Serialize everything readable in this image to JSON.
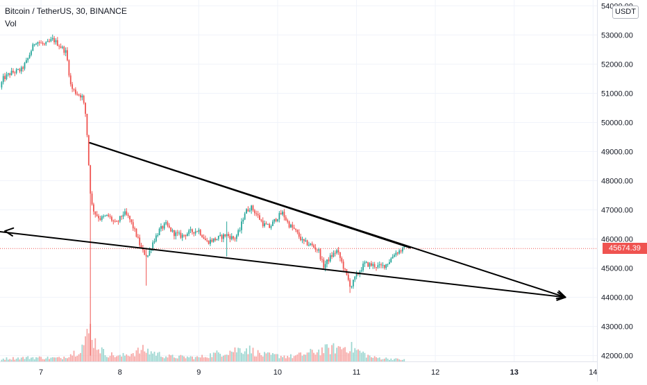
{
  "legend": {
    "symbol": "Bitcoin / TetherUS, 30, BINANCE",
    "volume_label": "Vol"
  },
  "currency": "USDT",
  "last_price_label": "45674.39",
  "colors": {
    "up": "#26a69a",
    "down": "#ef5350",
    "drawing": "#000000",
    "last_price_line": "#ef5350"
  },
  "chart_data": {
    "type": "candlestick",
    "symbol": "BTC/USDT",
    "interval": "30",
    "exchange": "BINANCE",
    "x_ticks": [
      {
        "label": "7",
        "day": 7,
        "bold": false
      },
      {
        "label": "8",
        "day": 8,
        "bold": false
      },
      {
        "label": "9",
        "day": 9,
        "bold": false
      },
      {
        "label": "10",
        "day": 10,
        "bold": false
      },
      {
        "label": "11",
        "day": 11,
        "bold": false
      },
      {
        "label": "12",
        "day": 12,
        "bold": false
      },
      {
        "label": "13",
        "day": 13,
        "bold": true
      },
      {
        "label": "14",
        "day": 14,
        "bold": false
      }
    ],
    "y_ticks": [
      {
        "value": 42000,
        "label": "42000.00"
      },
      {
        "value": 43000,
        "label": "43000.00"
      },
      {
        "value": 44000,
        "label": "44000.00"
      },
      {
        "value": 45000,
        "label": "45000.00"
      },
      {
        "value": 46000,
        "label": "46000.00"
      },
      {
        "value": 47000,
        "label": "47000.00"
      },
      {
        "value": 48000,
        "label": "48000.00"
      },
      {
        "value": 49000,
        "label": "49000.00"
      },
      {
        "value": 50000,
        "label": "50000.00"
      },
      {
        "value": 51000,
        "label": "51000.00"
      },
      {
        "value": 52000,
        "label": "52000.00"
      },
      {
        "value": 53000,
        "label": "53000.00"
      },
      {
        "value": 54000,
        "label": "54000.00"
      }
    ],
    "ylim": [
      41800,
      54200
    ],
    "xlim": [
      6.48,
      14.05
    ],
    "last_price": 45674.39,
    "price_path": [
      [
        6.48,
        51200
      ],
      [
        6.52,
        51500
      ],
      [
        6.62,
        51700
      ],
      [
        6.75,
        51800
      ],
      [
        6.82,
        52100
      ],
      [
        6.88,
        52500
      ],
      [
        6.93,
        52800
      ],
      [
        7.05,
        52650
      ],
      [
        7.15,
        52850
      ],
      [
        7.25,
        52600
      ],
      [
        7.32,
        52400
      ],
      [
        7.35,
        51800
      ],
      [
        7.38,
        51200
      ],
      [
        7.45,
        51000
      ],
      [
        7.52,
        50900
      ],
      [
        7.56,
        50400
      ],
      [
        7.58,
        49800
      ],
      [
        7.6,
        48800
      ],
      [
        7.62,
        47800
      ],
      [
        7.64,
        47200
      ],
      [
        7.68,
        46900
      ],
      [
        7.75,
        46700
      ],
      [
        7.85,
        46800
      ],
      [
        7.95,
        46500
      ],
      [
        8.05,
        46900
      ],
      [
        8.12,
        46700
      ],
      [
        8.2,
        46200
      ],
      [
        8.28,
        45600
      ],
      [
        8.35,
        45400
      ],
      [
        8.42,
        45900
      ],
      [
        8.5,
        46300
      ],
      [
        8.58,
        46500
      ],
      [
        8.68,
        46200
      ],
      [
        8.78,
        46100
      ],
      [
        8.9,
        46250
      ],
      [
        9.0,
        46300
      ],
      [
        9.1,
        45900
      ],
      [
        9.22,
        46000
      ],
      [
        9.35,
        46150
      ],
      [
        9.45,
        46000
      ],
      [
        9.52,
        46300
      ],
      [
        9.58,
        46900
      ],
      [
        9.66,
        47100
      ],
      [
        9.72,
        46900
      ],
      [
        9.82,
        46500
      ],
      [
        9.9,
        46400
      ],
      [
        9.98,
        46700
      ],
      [
        10.06,
        46900
      ],
      [
        10.14,
        46500
      ],
      [
        10.22,
        46300
      ],
      [
        10.32,
        45900
      ],
      [
        10.42,
        45800
      ],
      [
        10.52,
        45600
      ],
      [
        10.58,
        45050
      ],
      [
        10.66,
        45350
      ],
      [
        10.75,
        45600
      ],
      [
        10.8,
        45300
      ],
      [
        10.88,
        44700
      ],
      [
        10.93,
        44350
      ],
      [
        10.98,
        44650
      ],
      [
        11.04,
        44900
      ],
      [
        11.1,
        45150
      ],
      [
        11.2,
        45100
      ],
      [
        11.3,
        45050
      ],
      [
        11.36,
        45100
      ],
      [
        11.42,
        45250
      ],
      [
        11.48,
        45500
      ],
      [
        11.55,
        45600
      ],
      [
        11.62,
        45674
      ]
    ],
    "spikes": [
      {
        "day": 7.63,
        "high": 48400,
        "low": 42000
      },
      {
        "day": 8.33,
        "high": 45700,
        "low": 44400
      },
      {
        "day": 9.36,
        "high": 46600,
        "low": 45400
      },
      {
        "day": 10.92,
        "high": 44600,
        "low": 44150
      }
    ],
    "annotations": [
      {
        "type": "trend_line",
        "from": [
          7.62,
          49300
        ],
        "to": [
          11.68,
          45700
        ]
      },
      {
        "type": "ray_arrow",
        "from": [
          7.62,
          49300
        ],
        "to": [
          13.65,
          44000
        ]
      },
      {
        "type": "arrow_both",
        "from": [
          6.48,
          46250
        ],
        "to": [
          13.65,
          44000
        ]
      }
    ],
    "volume_path": [
      [
        6.48,
        0.08
      ],
      [
        6.88,
        0.12
      ],
      [
        7.25,
        0.1
      ],
      [
        7.45,
        0.3
      ],
      [
        7.55,
        0.55
      ],
      [
        7.63,
        1.0
      ],
      [
        7.68,
        0.6
      ],
      [
        7.8,
        0.25
      ],
      [
        8.0,
        0.15
      ],
      [
        8.3,
        0.35
      ],
      [
        8.6,
        0.15
      ],
      [
        9.0,
        0.12
      ],
      [
        9.35,
        0.3
      ],
      [
        9.6,
        0.4
      ],
      [
        9.8,
        0.2
      ],
      [
        10.2,
        0.15
      ],
      [
        10.58,
        0.35
      ],
      [
        10.9,
        0.45
      ],
      [
        11.2,
        0.12
      ],
      [
        11.62,
        0.05
      ]
    ]
  }
}
